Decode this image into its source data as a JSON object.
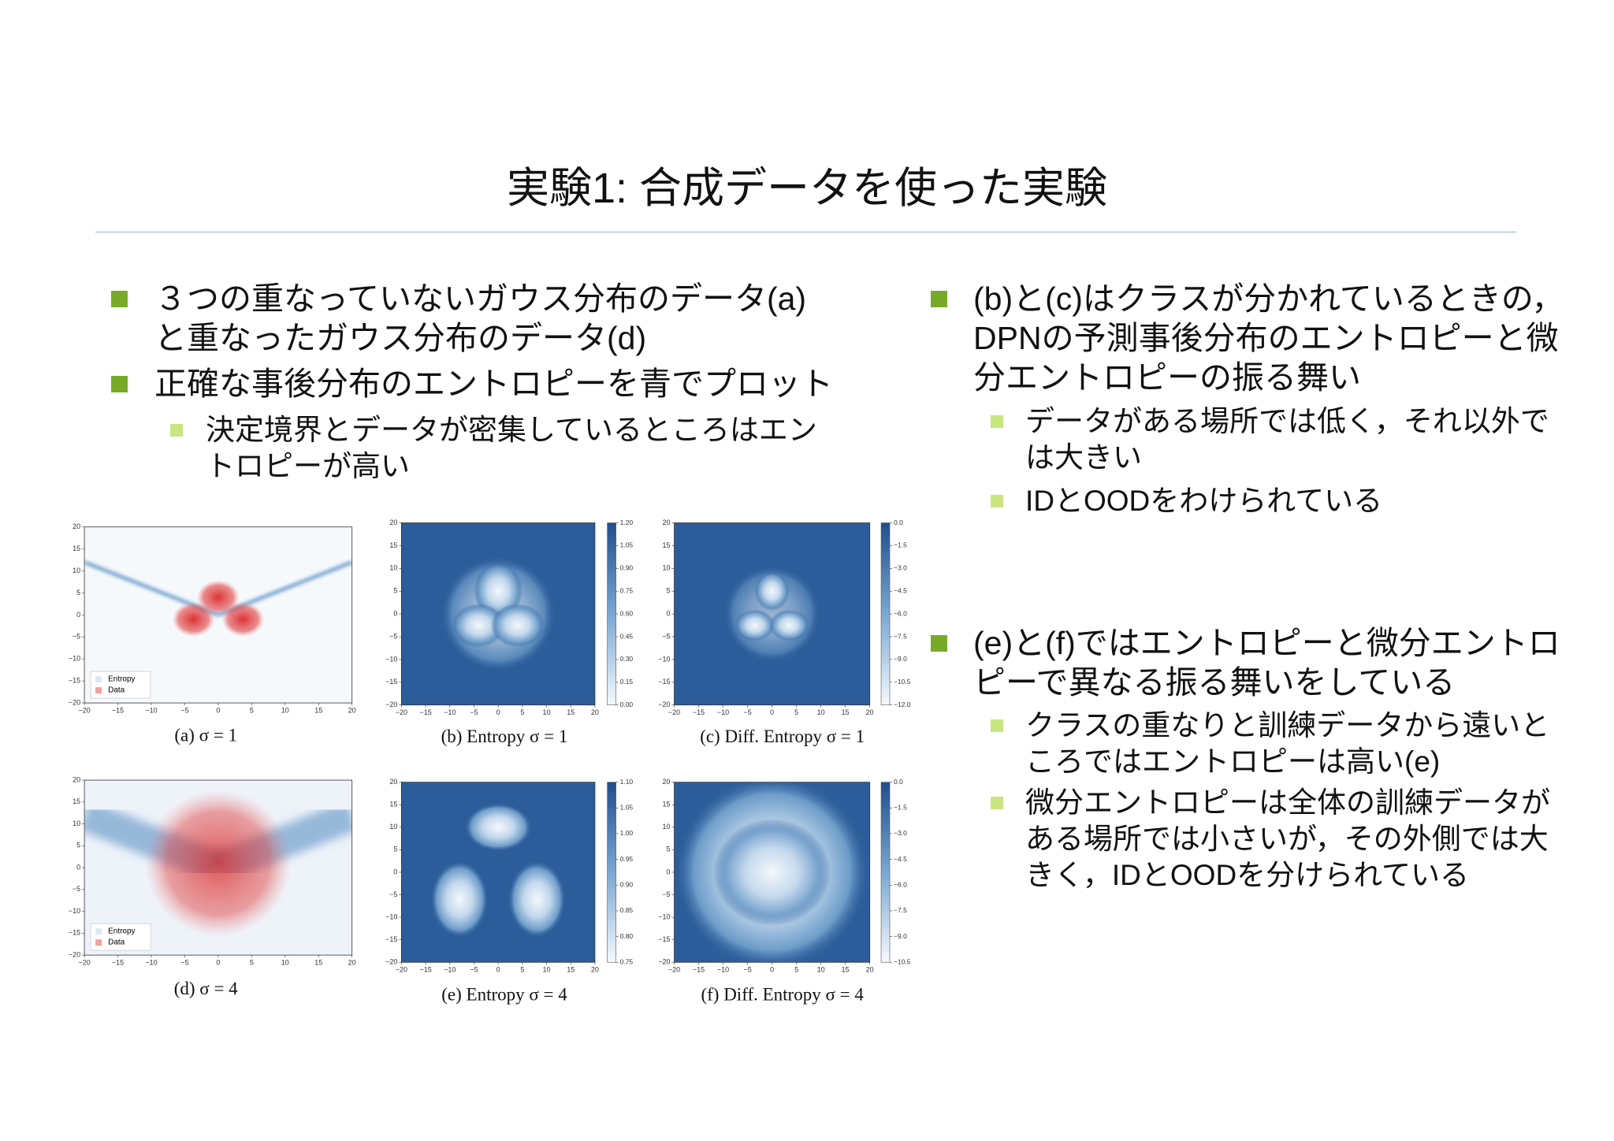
{
  "title": "実験1: 合成データを使った実験",
  "left_bullets": [
    {
      "lines": [
        "３つの重なっていないガウス分布のデータ(a)",
        "と重なったガウス分布のデータ(d)"
      ]
    },
    {
      "lines": [
        "正確な事後分布のエントロピーを青でプロット"
      ],
      "sub": [
        {
          "lines": [
            "決定境界とデータが密集しているところはエン",
            "トロピーが高い"
          ]
        }
      ]
    }
  ],
  "right_bullets": [
    {
      "lines": [
        "(b)と(c)はクラスが分かれているときの，",
        "DPNの予測事後分布のエントロピーと微",
        "分エントロピーの振る舞い"
      ],
      "sub": [
        {
          "lines": [
            "データがある場所では低く，それ以外で",
            "は大きい"
          ]
        },
        {
          "lines": [
            "IDとOODをわけられている"
          ]
        }
      ]
    },
    {
      "lines": [
        "(e)と(f)ではエントロピーと微分エントロ",
        "ピーで異なる振る舞いをしている"
      ],
      "sub": [
        {
          "lines": [
            "クラスの重なりと訓練データから遠いと",
            "ころではエントロピーは高い(e)"
          ]
        },
        {
          "lines": [
            "微分エントロピーは全体の訓練データが",
            "ある場所では小さいが，その外側では大",
            "きく，IDとOODを分けられている"
          ]
        }
      ]
    }
  ],
  "figures": [
    {
      "caption": "(a) σ = 1",
      "xticks": [
        "−20",
        "−15",
        "−10",
        "−5",
        "0",
        "5",
        "10",
        "15",
        "20"
      ],
      "yticks": [
        "−20",
        "−15",
        "−10",
        "−5",
        "0",
        "5",
        "10",
        "15",
        "20"
      ],
      "legend": [
        "Entropy",
        "Data"
      ]
    },
    {
      "caption": "(b) Entropy σ = 1",
      "xticks": [
        "−20",
        "−15",
        "−10",
        "−5",
        "0",
        "5",
        "10",
        "15",
        "20"
      ],
      "yticks": [
        "−20",
        "−15",
        "−10",
        "−5",
        "0",
        "5",
        "10",
        "15",
        "20"
      ],
      "colorbar": [
        "1.20",
        "1.05",
        "0.90",
        "0.75",
        "0.60",
        "0.45",
        "0.30",
        "0.15",
        "0.00"
      ]
    },
    {
      "caption": "(c) Diff. Entropy σ = 1",
      "xticks": [
        "−20",
        "−15",
        "−10",
        "−5",
        "0",
        "5",
        "10",
        "15",
        "20"
      ],
      "yticks": [
        "−20",
        "−15",
        "−10",
        "−5",
        "0",
        "5",
        "10",
        "15",
        "20"
      ],
      "colorbar": [
        "0.0",
        "−1.5",
        "−3.0",
        "−4.5",
        "−6.0",
        "−7.5",
        "−9.0",
        "−10.5",
        "−12.0"
      ]
    },
    {
      "caption": "(d) σ = 4",
      "xticks": [
        "−20",
        "−15",
        "−10",
        "−5",
        "0",
        "5",
        "10",
        "15",
        "20"
      ],
      "yticks": [
        "−20",
        "−15",
        "−10",
        "−5",
        "0",
        "5",
        "10",
        "15",
        "20"
      ],
      "legend": [
        "Entropy",
        "Data"
      ]
    },
    {
      "caption": "(e) Entropy σ = 4",
      "xticks": [
        "−20",
        "−15",
        "−10",
        "−5",
        "0",
        "5",
        "10",
        "15",
        "20"
      ],
      "yticks": [
        "−20",
        "−15",
        "−10",
        "−5",
        "0",
        "5",
        "10",
        "15",
        "20"
      ],
      "colorbar": [
        "1.10",
        "1.05",
        "1.00",
        "0.95",
        "0.90",
        "0.85",
        "0.80",
        "0.75"
      ]
    },
    {
      "caption": "(f) Diff. Entropy σ = 4",
      "xticks": [
        "−20",
        "−15",
        "−10",
        "−5",
        "0",
        "5",
        "10",
        "15",
        "20"
      ],
      "yticks": [
        "−20",
        "−15",
        "−10",
        "−5",
        "0",
        "5",
        "10",
        "15",
        "20"
      ],
      "colorbar": [
        "0.0",
        "−1.5",
        "−3.0",
        "−4.5",
        "−6.0",
        "−7.5",
        "−9.0",
        "−10.5"
      ]
    }
  ]
}
